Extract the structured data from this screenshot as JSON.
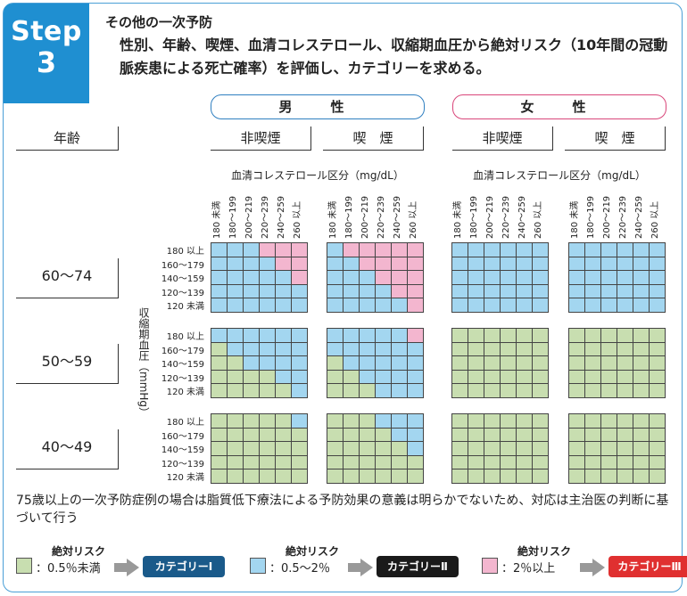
{
  "step": {
    "word": "Step",
    "num": "3"
  },
  "title": "その他の一次予防",
  "description": "性別、年齢、喫煙、血清コレステロール、収縮期血圧から絶対リスク（10年間の冠動脈疾患による死亡確率）を評価し、カテゴリーを求める。",
  "sex": {
    "male": "男　性",
    "female": "女　性"
  },
  "smoking": {
    "nonsmoker": "非喫煙",
    "smoker": "喫　煙"
  },
  "age_header": "年齢",
  "chol_label": "血清コレステロール区分（mg/dL）",
  "chol_ticks": [
    "180 未満",
    "180～199",
    "200～219",
    "220～239",
    "240～259",
    "260 以上"
  ],
  "bp_label": "収縮期血圧（mmHg）",
  "bp_ticks": [
    "180 以上",
    "160～179",
    "140～159",
    "120～139",
    "120 未満"
  ],
  "age_groups": [
    "60～74",
    "50～59",
    "40～49"
  ],
  "chart_data": {
    "type": "heatmap",
    "legend": {
      "1": "カテゴリーⅠ",
      "2": "カテゴリーⅡ",
      "3": "カテゴリーⅢ"
    },
    "panels": [
      {
        "age": "60～74",
        "sex": "男性",
        "smoking": "非喫煙",
        "grid": [
          [
            2,
            2,
            2,
            3,
            3,
            3
          ],
          [
            2,
            2,
            2,
            2,
            3,
            3
          ],
          [
            2,
            2,
            2,
            2,
            2,
            3
          ],
          [
            2,
            2,
            2,
            2,
            2,
            2
          ],
          [
            2,
            2,
            2,
            2,
            2,
            2
          ]
        ]
      },
      {
        "age": "60～74",
        "sex": "男性",
        "smoking": "喫煙",
        "grid": [
          [
            2,
            3,
            3,
            3,
            3,
            3
          ],
          [
            2,
            2,
            3,
            3,
            3,
            3
          ],
          [
            2,
            2,
            2,
            3,
            3,
            3
          ],
          [
            2,
            2,
            2,
            2,
            3,
            3
          ],
          [
            2,
            2,
            2,
            2,
            2,
            3
          ]
        ]
      },
      {
        "age": "60～74",
        "sex": "女性",
        "smoking": "非喫煙",
        "grid": [
          [
            2,
            2,
            2,
            2,
            2,
            2
          ],
          [
            2,
            2,
            2,
            2,
            2,
            2
          ],
          [
            2,
            2,
            2,
            2,
            2,
            2
          ],
          [
            2,
            2,
            2,
            2,
            2,
            2
          ],
          [
            2,
            2,
            2,
            2,
            2,
            2
          ]
        ]
      },
      {
        "age": "60～74",
        "sex": "女性",
        "smoking": "喫煙",
        "grid": [
          [
            2,
            2,
            2,
            2,
            2,
            2
          ],
          [
            2,
            2,
            2,
            2,
            2,
            2
          ],
          [
            2,
            2,
            2,
            2,
            2,
            2
          ],
          [
            2,
            2,
            2,
            2,
            2,
            2
          ],
          [
            2,
            2,
            2,
            2,
            2,
            2
          ]
        ]
      },
      {
        "age": "50～59",
        "sex": "男性",
        "smoking": "非喫煙",
        "grid": [
          [
            2,
            2,
            2,
            2,
            2,
            2
          ],
          [
            1,
            2,
            2,
            2,
            2,
            2
          ],
          [
            1,
            1,
            2,
            2,
            2,
            2
          ],
          [
            1,
            1,
            1,
            1,
            2,
            2
          ],
          [
            1,
            1,
            1,
            1,
            1,
            2
          ]
        ]
      },
      {
        "age": "50～59",
        "sex": "男性",
        "smoking": "喫煙",
        "grid": [
          [
            2,
            2,
            2,
            2,
            2,
            3
          ],
          [
            2,
            2,
            2,
            2,
            2,
            2
          ],
          [
            1,
            2,
            2,
            2,
            2,
            2
          ],
          [
            1,
            1,
            2,
            2,
            2,
            2
          ],
          [
            1,
            1,
            1,
            2,
            2,
            2
          ]
        ]
      },
      {
        "age": "50～59",
        "sex": "女性",
        "smoking": "非喫煙",
        "grid": [
          [
            1,
            1,
            1,
            1,
            1,
            1
          ],
          [
            1,
            1,
            1,
            1,
            1,
            1
          ],
          [
            1,
            1,
            1,
            1,
            1,
            1
          ],
          [
            1,
            1,
            1,
            1,
            1,
            1
          ],
          [
            1,
            1,
            1,
            1,
            1,
            1
          ]
        ]
      },
      {
        "age": "50～59",
        "sex": "女性",
        "smoking": "喫煙",
        "grid": [
          [
            1,
            1,
            1,
            1,
            1,
            1
          ],
          [
            1,
            1,
            1,
            1,
            1,
            1
          ],
          [
            1,
            1,
            1,
            1,
            1,
            1
          ],
          [
            1,
            1,
            1,
            1,
            1,
            1
          ],
          [
            1,
            1,
            1,
            1,
            1,
            1
          ]
        ]
      },
      {
        "age": "40～49",
        "sex": "男性",
        "smoking": "非喫煙",
        "grid": [
          [
            1,
            1,
            1,
            1,
            1,
            2
          ],
          [
            1,
            1,
            1,
            1,
            1,
            1
          ],
          [
            1,
            1,
            1,
            1,
            1,
            1
          ],
          [
            1,
            1,
            1,
            1,
            1,
            1
          ],
          [
            1,
            1,
            1,
            1,
            1,
            1
          ]
        ]
      },
      {
        "age": "40～49",
        "sex": "男性",
        "smoking": "喫煙",
        "grid": [
          [
            1,
            1,
            1,
            2,
            2,
            2
          ],
          [
            1,
            1,
            1,
            1,
            2,
            2
          ],
          [
            1,
            1,
            1,
            1,
            1,
            2
          ],
          [
            1,
            1,
            1,
            1,
            1,
            1
          ],
          [
            1,
            1,
            1,
            1,
            1,
            1
          ]
        ]
      },
      {
        "age": "40～49",
        "sex": "女性",
        "smoking": "非喫煙",
        "grid": [
          [
            1,
            1,
            1,
            1,
            1,
            1
          ],
          [
            1,
            1,
            1,
            1,
            1,
            1
          ],
          [
            1,
            1,
            1,
            1,
            1,
            1
          ],
          [
            1,
            1,
            1,
            1,
            1,
            1
          ],
          [
            1,
            1,
            1,
            1,
            1,
            1
          ]
        ]
      },
      {
        "age": "40～49",
        "sex": "女性",
        "smoking": "喫煙",
        "grid": [
          [
            1,
            1,
            1,
            1,
            1,
            1
          ],
          [
            1,
            1,
            1,
            1,
            1,
            1
          ],
          [
            1,
            1,
            1,
            1,
            1,
            1
          ],
          [
            1,
            1,
            1,
            1,
            1,
            1
          ],
          [
            1,
            1,
            1,
            1,
            1,
            1
          ]
        ]
      }
    ]
  },
  "note": "75歳以上の一次予防症例の場合は脂質低下療法による予防効果の意義は明らかでないため、対応は主治医の判断に基づいて行う",
  "legend": [
    {
      "title": "絶対リスク",
      "value": "：0.5％未満",
      "category": "カテゴリーⅠ",
      "swatch": "#c8deb0",
      "badge": "#1a5a8a"
    },
    {
      "title": "絶対リスク",
      "value": "：0.5～2％",
      "category": "カテゴリーⅡ",
      "swatch": "#a3d6f0",
      "badge": "#1a1a1a"
    },
    {
      "title": "絶対リスク",
      "value": "：2％以上",
      "category": "カテゴリーⅢ",
      "swatch": "#f3b6cf",
      "badge": "#e03030"
    }
  ]
}
